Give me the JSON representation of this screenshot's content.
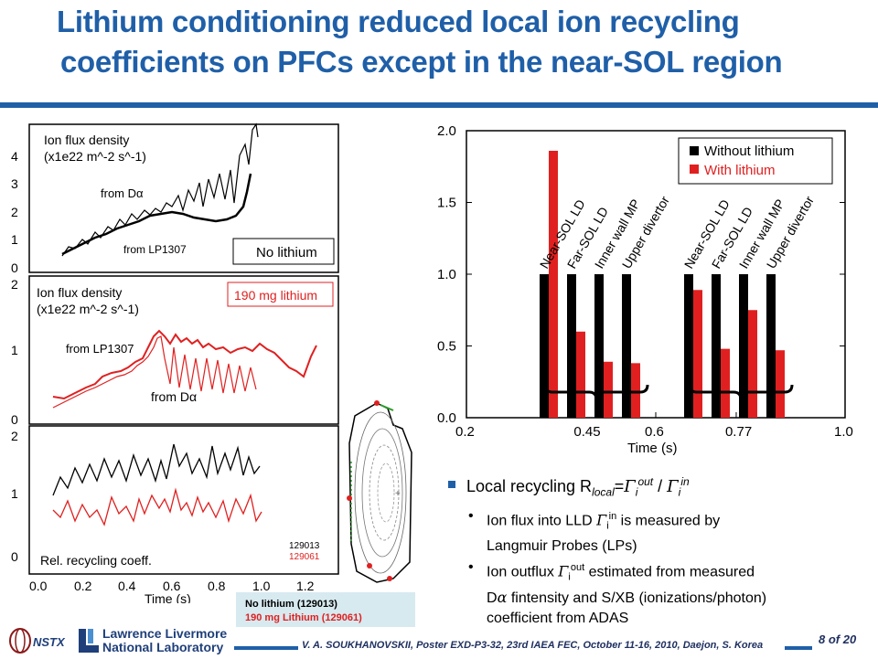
{
  "title": {
    "line1": "Lithium conditioning reduced local ion recycling",
    "line2": "coefficients on PFCs except in the near-SOL region"
  },
  "colors": {
    "title": "#1f5fa8",
    "red": "#e02020",
    "black": "#000000",
    "accent_rule": "#1f5fa8"
  },
  "left_panels": {
    "top": {
      "label1": "Ion flux density",
      "label2": "(x1e22 m^-2 s^-1)",
      "from_d": "from Dα",
      "from_lp": "from LP1307",
      "box": "No lithium",
      "yticks": [
        "4",
        "3",
        "2",
        "1",
        "0"
      ]
    },
    "mid": {
      "label1": "Ion flux density",
      "label2": "(x1e22 m^-2 s^-1)",
      "from_lp": "from LP1307",
      "from_d": "from Dα",
      "box": "190 mg lithium",
      "yticks": [
        "2",
        "1",
        "0"
      ]
    },
    "bot": {
      "label": "Rel. recycling coeff.",
      "shot1": "129013",
      "shot2": "129061",
      "yticks": [
        "2",
        "1",
        "0"
      ]
    },
    "xticks": [
      "0.0",
      "0.2",
      "0.4",
      "0.6",
      "0.8",
      "1.0",
      "1.2"
    ],
    "xlabel": "Time (s)"
  },
  "shot_legend": {
    "black": "No lithium (129013)",
    "red": "190 mg Lithium (129061)"
  },
  "chart_data": {
    "type": "bar",
    "xlabel": "Time (s)",
    "xticks": [
      "0.2",
      "0.45",
      "0.6",
      "0.77",
      "1.0"
    ],
    "yticks": [
      "0.0",
      "0.5",
      "1.0",
      "1.5",
      "2.0"
    ],
    "ylim": [
      0,
      2.0
    ],
    "xlim": [
      0.2,
      1.0
    ],
    "legend": [
      "Without lithium",
      "With lithium"
    ],
    "legend_position": "top-right",
    "categories": [
      "Near-SOL LD",
      "Far-SOL LD",
      "Inner wall MP",
      "Upper divertor"
    ],
    "groups": [
      {
        "time": 0.45,
        "series": [
          {
            "name": "Without lithium",
            "values": [
              1.0,
              1.0,
              1.0,
              1.0
            ]
          },
          {
            "name": "With lithium",
            "values": [
              1.86,
              0.6,
              0.39,
              0.38
            ]
          }
        ]
      },
      {
        "time": 0.77,
        "series": [
          {
            "name": "Without lithium",
            "values": [
              1.0,
              1.0,
              1.0,
              1.0
            ]
          },
          {
            "name": "With lithium",
            "values": [
              0.89,
              0.48,
              0.75,
              0.47
            ]
          }
        ]
      }
    ]
  },
  "bullets": {
    "main_prefix": "Local recycling R",
    "main_sub": "local",
    "main_eq": "=",
    "gamma": "Γ",
    "i": "i",
    "out": "out",
    "slash": " / ",
    "in": "in",
    "b1_a": "Ion flux into LLD ",
    "b1_b": " is measured by",
    "b1_c": "Langmuir Probes (LPs)",
    "b2_a": "Ion outflux ",
    "b2_b": " estimated from measured",
    "b2_c": "D",
    "alpha": "α",
    "b2_d": " fintensity and S/XB (ionizations/photon)",
    "b2_e": "coefficient from ADAS"
  },
  "footer": {
    "text": "V. A. SOUKHANOVSKII, Poster EXD-P3-32, 23rd IAEA FEC, October 11-16, 2010, Daejon, S. Korea",
    "page_num": "8",
    "page_of": " of 20",
    "nstx": "NSTX",
    "llnl1": "Lawrence Livermore",
    "llnl2": "National Laboratory"
  }
}
